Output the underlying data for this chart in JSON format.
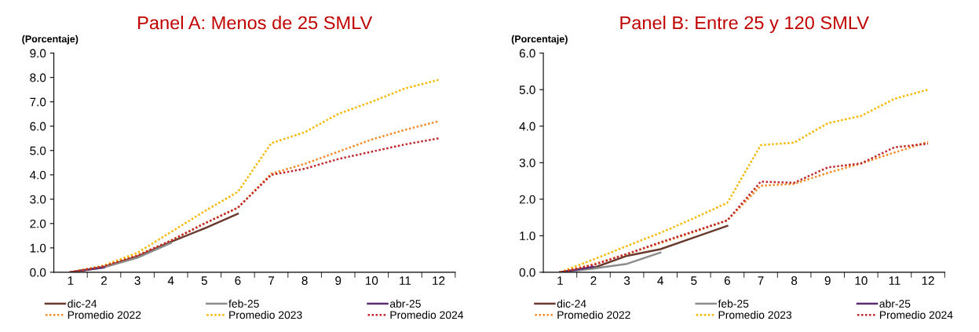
{
  "chart_data": [
    {
      "type": "line",
      "title": "Panel A: Menos de 25 SMLV",
      "ylabel": "(Porcentaje)",
      "categories": [
        "1",
        "2",
        "3",
        "4",
        "5",
        "6",
        "7",
        "8",
        "9",
        "10",
        "11",
        "12"
      ],
      "ylim": [
        0,
        9
      ],
      "yticks": [
        {
          "value": 0,
          "label": "0.0"
        },
        {
          "value": 1,
          "label": "1.0"
        },
        {
          "value": 2,
          "label": "2.0"
        },
        {
          "value": 3,
          "label": "3.0"
        },
        {
          "value": 4,
          "label": "4.0"
        },
        {
          "value": 5,
          "label": "5.0"
        },
        {
          "value": 6,
          "label": "6.0"
        },
        {
          "value": 7,
          "label": "7.0"
        },
        {
          "value": 8,
          "label": "8.0"
        },
        {
          "value": 9,
          "label": "9.0"
        }
      ],
      "grid": false,
      "legend": "bottom",
      "series": [
        {
          "name": "dic-24",
          "color": "#6b3a2e",
          "line_style": "solid",
          "values": [
            0,
            0.22,
            0.65,
            1.25,
            1.8,
            2.4,
            null,
            null,
            null,
            null,
            null,
            null
          ]
        },
        {
          "name": "feb-25",
          "color": "#8c8c8c",
          "line_style": "solid",
          "values": [
            0,
            0.2,
            0.6,
            1.2,
            null,
            null,
            null,
            null,
            null,
            null,
            null,
            null
          ]
        },
        {
          "name": "abr-25",
          "color": "#5b2c6f",
          "line_style": "solid",
          "values": [
            0,
            0.2,
            null,
            null,
            null,
            null,
            null,
            null,
            null,
            null,
            null,
            null
          ]
        },
        {
          "name": "Promedio 2022",
          "color": "#f28c28",
          "line_style": "dotted",
          "values": [
            0,
            0.25,
            0.7,
            1.3,
            2.0,
            2.65,
            4.05,
            4.45,
            4.95,
            5.45,
            5.85,
            6.2
          ]
        },
        {
          "name": "Promedio 2023",
          "color": "#f5b800",
          "line_style": "dotted",
          "values": [
            0,
            0.28,
            0.8,
            1.65,
            2.5,
            3.3,
            5.3,
            5.75,
            6.5,
            7.0,
            7.55,
            7.9
          ]
        },
        {
          "name": "Promedio 2024",
          "color": "#c0282b",
          "line_style": "dotted",
          "values": [
            0,
            0.25,
            0.68,
            1.3,
            2.0,
            2.65,
            4.0,
            4.25,
            4.65,
            4.95,
            5.25,
            5.5
          ]
        }
      ]
    },
    {
      "type": "line",
      "title": "Panel B: Entre 25 y 120 SMLV",
      "ylabel": "(Porcentaje)",
      "categories": [
        "1",
        "2",
        "3",
        "4",
        "5",
        "6",
        "7",
        "8",
        "9",
        "10",
        "11",
        "12"
      ],
      "ylim": [
        0,
        6
      ],
      "yticks": [
        {
          "value": 0,
          "label": "0.0"
        },
        {
          "value": 1,
          "label": "1.0"
        },
        {
          "value": 2,
          "label": "2.0"
        },
        {
          "value": 3,
          "label": "3.0"
        },
        {
          "value": 4,
          "label": "4.0"
        },
        {
          "value": 5,
          "label": "5.0"
        },
        {
          "value": 6,
          "label": "6.0"
        }
      ],
      "grid": false,
      "legend": "bottom",
      "series": [
        {
          "name": "dic-24",
          "color": "#6b3a2e",
          "line_style": "solid",
          "values": [
            0,
            0.12,
            0.45,
            0.63,
            0.95,
            1.27,
            null,
            null,
            null,
            null,
            null,
            null
          ]
        },
        {
          "name": "feb-25",
          "color": "#8c8c8c",
          "line_style": "solid",
          "values": [
            0,
            0.1,
            0.23,
            0.54,
            null,
            null,
            null,
            null,
            null,
            null,
            null,
            null
          ]
        },
        {
          "name": "abr-25",
          "color": "#5b2c6f",
          "line_style": "solid",
          "values": [
            0,
            0.15,
            null,
            null,
            null,
            null,
            null,
            null,
            null,
            null,
            null,
            null
          ]
        },
        {
          "name": "Promedio 2022",
          "color": "#f28c28",
          "line_style": "dotted",
          "values": [
            0,
            0.22,
            0.5,
            0.8,
            1.1,
            1.42,
            2.37,
            2.42,
            2.72,
            2.98,
            3.28,
            3.57
          ]
        },
        {
          "name": "Promedio 2023",
          "color": "#f5b800",
          "line_style": "dotted",
          "values": [
            0,
            0.35,
            0.72,
            1.08,
            1.48,
            1.9,
            3.48,
            3.55,
            4.08,
            4.28,
            4.75,
            5.0
          ]
        },
        {
          "name": "Promedio 2024",
          "color": "#c0282b",
          "line_style": "dotted",
          "values": [
            0,
            0.2,
            0.5,
            0.82,
            1.12,
            1.42,
            2.48,
            2.45,
            2.87,
            2.98,
            3.42,
            3.52
          ]
        }
      ]
    }
  ]
}
